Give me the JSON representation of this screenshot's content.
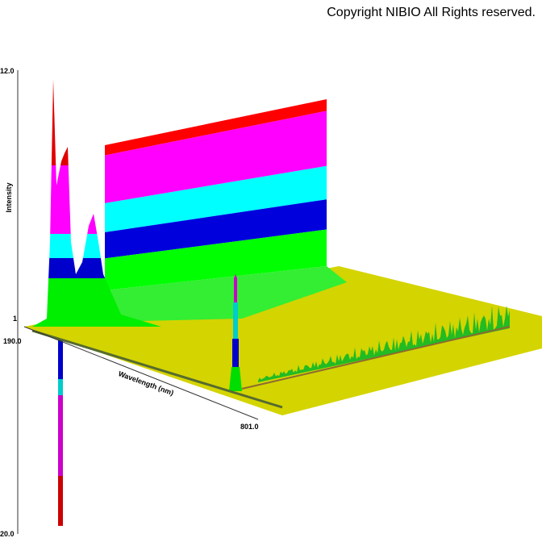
{
  "header": {
    "copyright": "Copyright NIBIO All Rights reserved."
  },
  "axes": {
    "z_label": "Intensity",
    "z_top": "12.0",
    "z_bottom": "20.0",
    "z_mid": "1",
    "x_label": "Wavelength (nm)",
    "x_start": "190.0",
    "x_end": "801.0"
  }
}
